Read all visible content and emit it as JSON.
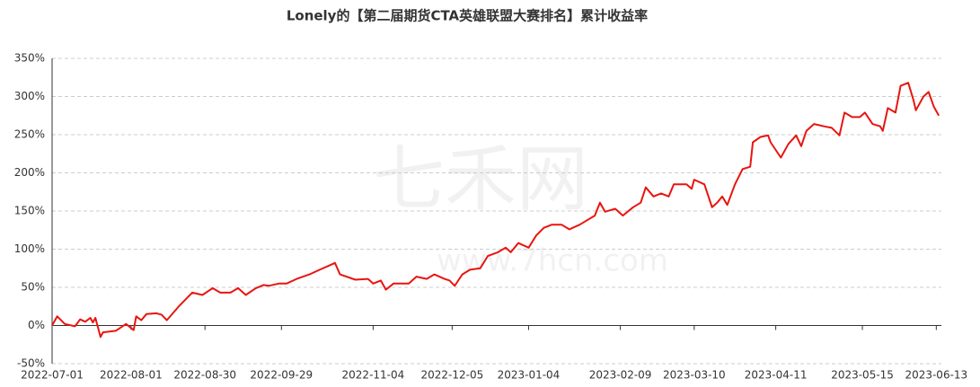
{
  "chart_data": {
    "type": "line",
    "title": "Lonely的【第二届期货CTA英雄联盟大赛排名】累计收益率",
    "watermark": [
      "七禾网",
      "www.7hcn.com"
    ],
    "x": [
      "2022-07-01",
      "2022-07-03",
      "2022-07-06",
      "2022-07-10",
      "2022-07-12",
      "2022-07-14",
      "2022-07-16",
      "2022-07-17",
      "2022-07-18",
      "2022-07-20",
      "2022-07-21",
      "2022-07-26",
      "2022-07-30",
      "2022-08-02",
      "2022-08-03",
      "2022-08-05",
      "2022-08-07",
      "2022-08-11",
      "2022-08-13",
      "2022-08-15",
      "2022-08-20",
      "2022-08-25",
      "2022-08-29",
      "2022-09-02",
      "2022-09-05",
      "2022-09-09",
      "2022-09-12",
      "2022-09-15",
      "2022-09-19",
      "2022-09-22",
      "2022-09-24",
      "2022-09-28",
      "2022-10-01",
      "2022-10-05",
      "2022-10-10",
      "2022-10-14",
      "2022-10-18",
      "2022-10-20",
      "2022-10-22",
      "2022-10-28",
      "2022-11-02",
      "2022-11-04",
      "2022-11-07",
      "2022-11-09",
      "2022-11-12",
      "2022-11-18",
      "2022-11-21",
      "2022-11-25",
      "2022-11-28",
      "2022-12-02",
      "2022-12-04",
      "2022-12-06",
      "2022-12-09",
      "2022-12-12",
      "2022-12-16",
      "2022-12-19",
      "2022-12-23",
      "2022-12-26",
      "2022-12-28",
      "2022-12-31",
      "2023-01-04",
      "2023-01-07",
      "2023-01-10",
      "2023-01-13",
      "2023-01-17",
      "2023-01-20",
      "2023-01-24",
      "2023-01-27",
      "2023-01-30",
      "2023-02-01",
      "2023-02-03",
      "2023-02-07",
      "2023-02-10",
      "2023-02-14",
      "2023-02-17",
      "2023-02-19",
      "2023-02-22",
      "2023-02-25",
      "2023-02-28",
      "2023-03-02",
      "2023-03-07",
      "2023-03-09",
      "2023-03-10",
      "2023-03-14",
      "2023-03-17",
      "2023-03-19",
      "2023-03-21",
      "2023-03-23",
      "2023-03-26",
      "2023-03-29",
      "2023-04-01",
      "2023-04-02",
      "2023-04-05",
      "2023-04-08",
      "2023-04-09",
      "2023-04-13",
      "2023-04-16",
      "2023-04-19",
      "2023-04-21",
      "2023-04-23",
      "2023-04-26",
      "2023-04-30",
      "2023-05-03",
      "2023-05-06",
      "2023-05-08",
      "2023-05-11",
      "2023-05-14",
      "2023-05-16",
      "2023-05-19",
      "2023-05-22",
      "2023-05-23",
      "2023-05-25",
      "2023-05-28",
      "2023-05-30",
      "2023-06-02",
      "2023-06-04",
      "2023-06-05",
      "2023-06-08",
      "2023-06-10",
      "2023-06-12",
      "2023-06-14"
    ],
    "series": [
      {
        "color": "#e8150f",
        "values": [
          0,
          12,
          2,
          -1,
          8,
          5,
          10,
          4,
          10,
          -15,
          -9,
          -7,
          2,
          -6,
          12,
          7,
          15,
          16,
          14,
          7,
          26,
          43,
          40,
          49,
          43,
          43,
          49,
          40,
          49,
          53,
          52,
          55,
          55,
          61,
          67,
          73,
          79,
          82,
          67,
          60,
          61,
          55,
          59,
          47,
          55,
          55,
          64,
          61,
          67,
          61,
          59,
          52,
          67,
          73,
          75,
          91,
          96,
          102,
          96,
          108,
          102,
          118,
          128,
          132,
          132,
          126,
          132,
          138,
          144,
          161,
          149,
          153,
          144,
          155,
          161,
          181,
          169,
          173,
          169,
          185,
          185,
          179,
          191,
          185,
          155,
          161,
          169,
          158,
          185,
          205,
          208,
          240,
          247,
          249,
          240,
          220,
          238,
          249,
          235,
          255,
          264,
          261,
          259,
          249,
          279,
          273,
          273,
          279,
          264,
          261,
          255,
          285,
          279,
          314,
          318,
          296,
          282,
          300,
          306,
          287,
          275
        ]
      }
    ],
    "xlim": [
      "2022-07-01",
      "2023-06-15"
    ],
    "xticks": [
      "2022-07-01",
      "2022-08-01",
      "2022-08-30",
      "2022-09-29",
      "2022-11-04",
      "2022-12-05",
      "2023-01-04",
      "2023-02-09",
      "2023-03-10",
      "2023-04-11",
      "2023-05-15",
      "2023-06-13"
    ],
    "ylim": [
      -50,
      350
    ],
    "yticks": [
      {
        "value": -50,
        "label": "-50%"
      },
      {
        "value": 0,
        "label": "0%"
      },
      {
        "value": 50,
        "label": "50%"
      },
      {
        "value": 100,
        "label": "100%"
      },
      {
        "value": 150,
        "label": "150%"
      },
      {
        "value": 200,
        "label": "200%"
      },
      {
        "value": 250,
        "label": "250%"
      },
      {
        "value": 300,
        "label": "300%"
      },
      {
        "value": 350,
        "label": "350%"
      }
    ],
    "grid": true
  }
}
